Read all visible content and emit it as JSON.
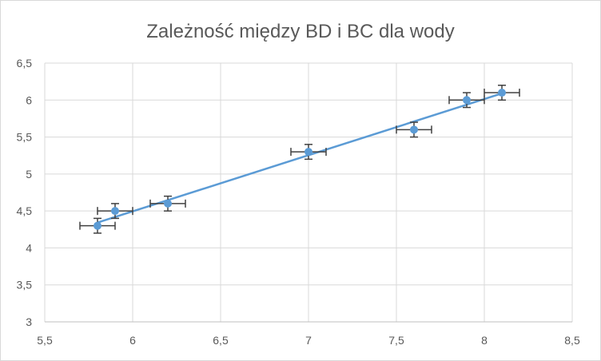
{
  "chart_data": {
    "type": "scatter",
    "title": "Zależność między BD i BC dla wody",
    "xlabel": "",
    "ylabel": "",
    "xlim": [
      5.5,
      8.5
    ],
    "ylim": [
      3,
      6.5
    ],
    "x_ticks": [
      "5,5",
      "6",
      "6,5",
      "7",
      "7,5",
      "8",
      "8,5"
    ],
    "y_ticks": [
      "3",
      "3,5",
      "4",
      "4,5",
      "5",
      "5,5",
      "6",
      "6,5"
    ],
    "grid": true,
    "legend": "none",
    "series": [
      {
        "points": [
          {
            "x": 5.8,
            "y": 4.3
          },
          {
            "x": 5.9,
            "y": 4.5
          },
          {
            "x": 6.2,
            "y": 4.6
          },
          {
            "x": 7.0,
            "y": 5.3
          },
          {
            "x": 7.6,
            "y": 5.6
          },
          {
            "x": 7.9,
            "y": 6.0
          },
          {
            "x": 8.1,
            "y": 6.1
          }
        ],
        "x_error": 0.1,
        "y_error": 0.1,
        "marker_color": "#5b9bd5"
      }
    ],
    "trendline": {
      "type": "linear",
      "color": "#5b9bd5"
    },
    "colors": {
      "grid": "#d9d9d9",
      "axis": "#bfbfbf",
      "error_bar": "#404040",
      "text": "#595959"
    }
  }
}
